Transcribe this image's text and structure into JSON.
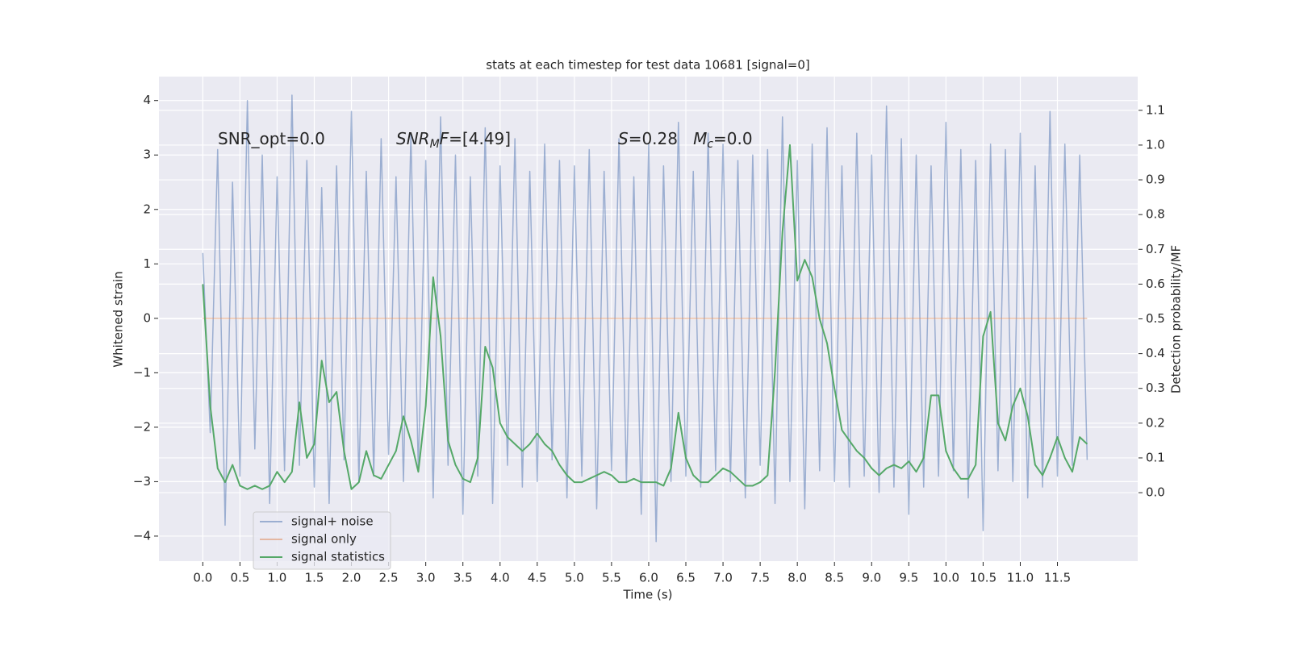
{
  "chart_data": {
    "type": "line",
    "title": "stats at each timestep for test data 10681 [signal=0]",
    "xlabel": "Time (s)",
    "ylabel": "Whitened strain",
    "y2label": "Detection probability/MF",
    "annotations": [
      [
        {
          "text": "SNR_opt=0.0"
        }
      ],
      [
        {
          "text": "SNR",
          "italic": true
        },
        {
          "text": "M",
          "italic": true,
          "sub": true
        },
        {
          "text": "F",
          "italic": true
        },
        {
          "text": "=[4.49]"
        }
      ],
      [
        {
          "text": "S",
          "italic": true
        },
        {
          "text": "=0.28   "
        },
        {
          "text": "M",
          "italic": true
        },
        {
          "text": "c",
          "italic": true,
          "sub": true
        },
        {
          "text": "=0.0"
        }
      ]
    ],
    "grid": true,
    "background": "#eaeaf2",
    "legend_position": "lower left",
    "xlim": [
      -0.59,
      12.58
    ],
    "ylim": [
      -4.46,
      4.44
    ],
    "y2lim": [
      -0.197,
      1.197
    ],
    "xticks": [
      {
        "value": 0,
        "label": "0.0"
      },
      0.5,
      {
        "value": 1,
        "label": "1.0"
      },
      1.5,
      {
        "value": 2,
        "label": "2.0"
      },
      2.5,
      {
        "value": 3,
        "label": "3.0"
      },
      3.5,
      {
        "value": 4,
        "label": "4.0"
      },
      4.5,
      {
        "value": 5,
        "label": "5.0"
      },
      5.5,
      {
        "value": 6,
        "label": "6.0"
      },
      6.5,
      {
        "value": 7,
        "label": "7.0"
      },
      7.5,
      {
        "value": 8,
        "label": "8.0"
      },
      8.5,
      {
        "value": 9,
        "label": "9.0"
      },
      9.5,
      {
        "value": 10,
        "label": "10.0"
      },
      10.5,
      {
        "value": 11,
        "label": "11.0"
      },
      11.5
    ],
    "yticks": [
      {
        "value": -4,
        "label": "−4"
      },
      {
        "value": -3,
        "label": "−3"
      },
      {
        "value": -2,
        "label": "−2"
      },
      {
        "value": -1,
        "label": "−1"
      },
      0,
      1,
      2,
      3,
      4
    ],
    "y2ticks": [
      {
        "value": 0,
        "label": "0.0"
      },
      0.1,
      0.2,
      0.3,
      0.4,
      0.5,
      0.6,
      0.7,
      0.8,
      0.9,
      {
        "value": 1,
        "label": "1.0"
      },
      1.1
    ],
    "x": [
      0,
      0.1,
      0.2,
      0.3,
      0.4,
      0.5,
      0.6,
      0.7,
      0.8,
      0.9,
      1,
      1.1,
      1.2,
      1.3,
      1.4,
      1.5,
      1.6,
      1.7,
      1.8,
      1.9,
      2,
      2.1,
      2.2,
      2.3,
      2.4,
      2.5,
      2.6,
      2.7,
      2.8,
      2.9,
      3,
      3.1,
      3.2,
      3.3,
      3.4,
      3.5,
      3.6,
      3.7,
      3.8,
      3.9,
      4,
      4.1,
      4.2,
      4.3,
      4.4,
      4.5,
      4.6,
      4.7,
      4.8,
      4.9,
      5,
      5.1,
      5.2,
      5.3,
      5.4,
      5.5,
      5.6,
      5.7,
      5.8,
      5.9,
      6,
      6.1,
      6.2,
      6.3,
      6.4,
      6.5,
      6.6,
      6.7,
      6.8,
      6.9,
      7,
      7.1,
      7.2,
      7.3,
      7.4,
      7.5,
      7.6,
      7.7,
      7.8,
      7.9,
      8,
      8.1,
      8.2,
      8.3,
      8.4,
      8.5,
      8.6,
      8.7,
      8.8,
      8.9,
      9,
      9.1,
      9.2,
      9.3,
      9.4,
      9.5,
      9.6,
      9.7,
      9.8,
      9.9,
      10,
      10.1,
      10.2,
      10.3,
      10.4,
      10.5,
      10.6,
      10.7,
      10.8,
      10.9,
      11,
      11.1,
      11.2,
      11.3,
      11.4,
      11.5,
      11.6,
      11.7,
      11.8,
      11.9
    ],
    "series": [
      {
        "name": "signal+ noise",
        "color": "#4c72b0",
        "alpha": 0.5,
        "axis": "y",
        "values": [
          1.2,
          -2.1,
          3.1,
          -3.8,
          2.5,
          -2.9,
          4.0,
          -2.4,
          3.0,
          -3.4,
          2.6,
          -2.8,
          4.1,
          -2.7,
          2.9,
          -3.1,
          2.4,
          -3.4,
          2.8,
          -2.6,
          3.8,
          -3.0,
          2.7,
          -2.9,
          3.3,
          -2.5,
          2.6,
          -3.0,
          3.4,
          -2.8,
          2.9,
          -3.3,
          3.7,
          -2.7,
          3.0,
          -3.6,
          2.6,
          -2.9,
          3.5,
          -3.4,
          2.8,
          -2.7,
          3.3,
          -3.1,
          2.7,
          -3.0,
          3.2,
          -2.6,
          2.9,
          -3.3,
          2.8,
          -2.9,
          3.1,
          -3.5,
          2.7,
          -2.8,
          3.3,
          -3.0,
          2.6,
          -3.6,
          3.2,
          -4.1,
          2.8,
          -3.0,
          3.6,
          -2.9,
          2.7,
          -3.1,
          3.4,
          -2.8,
          3.2,
          -3.0,
          2.9,
          -3.3,
          3.0,
          -2.7,
          3.1,
          -3.4,
          3.7,
          -3.0,
          2.9,
          -3.5,
          3.2,
          -2.8,
          3.5,
          -3.0,
          2.8,
          -3.1,
          3.4,
          -2.9,
          3.0,
          -3.2,
          3.9,
          -3.1,
          3.3,
          -3.6,
          3.0,
          -3.1,
          2.8,
          -2.9,
          3.6,
          -2.8,
          3.1,
          -3.3,
          2.9,
          -3.9,
          3.2,
          -2.8,
          3.1,
          -3.0,
          3.4,
          -3.3,
          2.8,
          -3.1,
          3.8,
          -2.9,
          3.2,
          -2.7,
          3.0,
          -2.6
        ]
      },
      {
        "name": "signal only",
        "color": "#dd8452",
        "alpha": 0.5,
        "axis": "y",
        "values": [
          0,
          0,
          0,
          0,
          0,
          0,
          0,
          0,
          0,
          0,
          0,
          0,
          0,
          0,
          0,
          0,
          0,
          0,
          0,
          0,
          0,
          0,
          0,
          0,
          0,
          0,
          0,
          0,
          0,
          0,
          0,
          0,
          0,
          0,
          0,
          0,
          0,
          0,
          0,
          0,
          0,
          0,
          0,
          0,
          0,
          0,
          0,
          0,
          0,
          0,
          0,
          0,
          0,
          0,
          0,
          0,
          0,
          0,
          0,
          0,
          0,
          0,
          0,
          0,
          0,
          0,
          0,
          0,
          0,
          0,
          0,
          0,
          0,
          0,
          0,
          0,
          0,
          0,
          0,
          0,
          0,
          0,
          0,
          0,
          0,
          0,
          0,
          0,
          0,
          0,
          0,
          0,
          0,
          0,
          0,
          0,
          0,
          0,
          0,
          0,
          0,
          0,
          0,
          0,
          0,
          0,
          0,
          0,
          0,
          0,
          0,
          0,
          0,
          0,
          0,
          0,
          0,
          0,
          0,
          0
        ]
      },
      {
        "name": "signal statistics",
        "color": "#55a868",
        "alpha": 1,
        "axis": "y2",
        "values": [
          0.6,
          0.25,
          0.07,
          0.03,
          0.08,
          0.02,
          0.01,
          0.02,
          0.01,
          0.02,
          0.06,
          0.03,
          0.06,
          0.26,
          0.1,
          0.14,
          0.38,
          0.26,
          0.29,
          0.12,
          0.01,
          0.03,
          0.12,
          0.05,
          0.04,
          0.08,
          0.12,
          0.22,
          0.15,
          0.06,
          0.25,
          0.62,
          0.45,
          0.15,
          0.08,
          0.04,
          0.03,
          0.1,
          0.42,
          0.36,
          0.2,
          0.16,
          0.14,
          0.12,
          0.14,
          0.17,
          0.14,
          0.12,
          0.08,
          0.05,
          0.03,
          0.03,
          0.04,
          0.05,
          0.06,
          0.05,
          0.03,
          0.03,
          0.04,
          0.03,
          0.03,
          0.03,
          0.02,
          0.07,
          0.23,
          0.1,
          0.05,
          0.03,
          0.03,
          0.05,
          0.07,
          0.06,
          0.04,
          0.02,
          0.02,
          0.03,
          0.05,
          0.35,
          0.75,
          1.0,
          0.61,
          0.67,
          0.62,
          0.5,
          0.43,
          0.3,
          0.18,
          0.15,
          0.12,
          0.1,
          0.07,
          0.05,
          0.07,
          0.08,
          0.07,
          0.09,
          0.06,
          0.1,
          0.28,
          0.28,
          0.12,
          0.07,
          0.04,
          0.04,
          0.08,
          0.45,
          0.52,
          0.2,
          0.15,
          0.25,
          0.3,
          0.22,
          0.08,
          0.05,
          0.1,
          0.16,
          0.1,
          0.06,
          0.16,
          0.14
        ]
      }
    ]
  }
}
